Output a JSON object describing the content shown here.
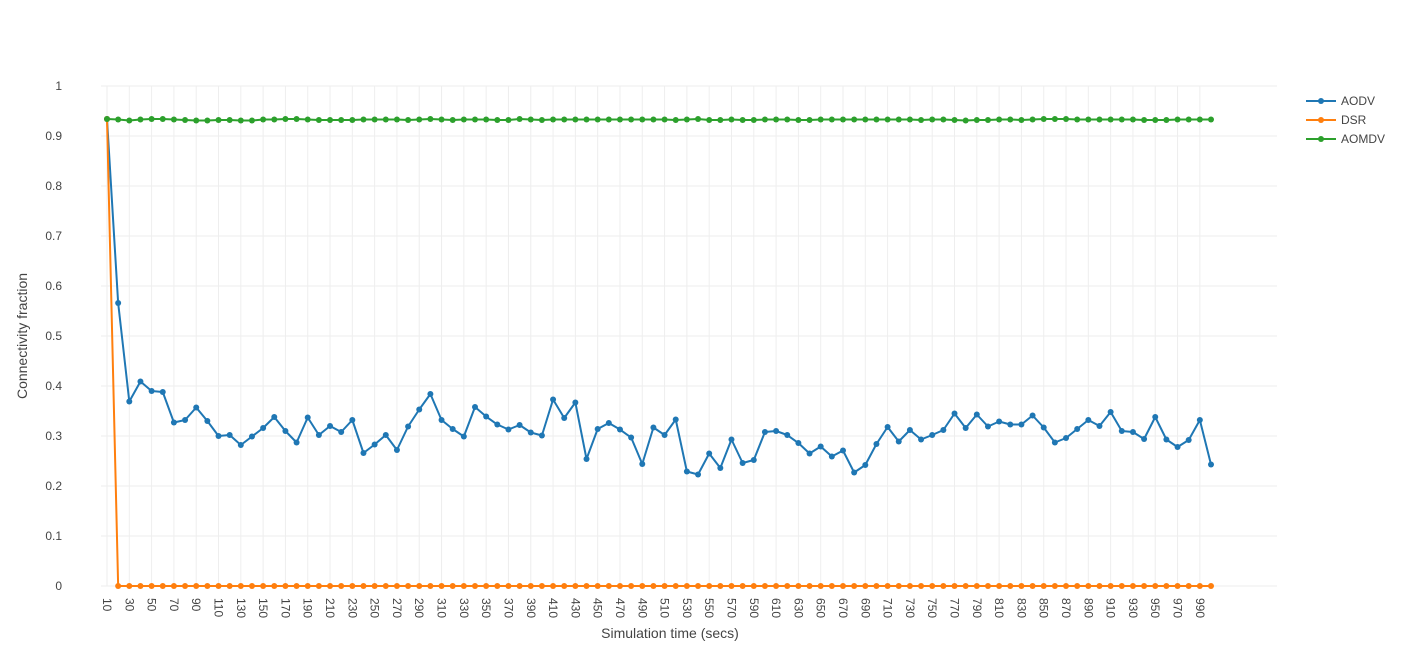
{
  "chart_data": {
    "type": "line",
    "xlabel": "Simulation time (secs)",
    "ylabel": "Connectivity fraction",
    "xlim": [
      10,
      1000
    ],
    "ylim": [
      0,
      1
    ],
    "x_tick_step": 20,
    "y_ticks": [
      0,
      0.1,
      0.2,
      0.3,
      0.4,
      0.5,
      0.6,
      0.7,
      0.8,
      0.9,
      1
    ],
    "y_tick_labels": [
      "0",
      "0.1",
      "0.2",
      "0.3",
      "0.4",
      "0.5",
      "0.6",
      "0.7",
      "0.8",
      "0.9",
      "1"
    ],
    "grid": true,
    "legend_position": "top-right",
    "x": [
      10,
      20,
      30,
      40,
      50,
      60,
      70,
      80,
      90,
      100,
      110,
      120,
      130,
      140,
      150,
      160,
      170,
      180,
      190,
      200,
      210,
      220,
      230,
      240,
      250,
      260,
      270,
      280,
      290,
      300,
      310,
      320,
      330,
      340,
      350,
      360,
      370,
      380,
      390,
      400,
      410,
      420,
      430,
      440,
      450,
      460,
      470,
      480,
      490,
      500,
      510,
      520,
      530,
      540,
      550,
      560,
      570,
      580,
      590,
      600,
      610,
      620,
      630,
      640,
      650,
      660,
      670,
      680,
      690,
      700,
      710,
      720,
      730,
      740,
      750,
      760,
      770,
      780,
      790,
      800,
      810,
      820,
      830,
      840,
      850,
      860,
      870,
      880,
      890,
      900,
      910,
      920,
      930,
      940,
      950,
      960,
      970,
      980,
      990,
      1000
    ],
    "series": [
      {
        "name": "AODV",
        "color": "#1f77b4",
        "values": [
          0.934,
          0.566,
          0.369,
          0.409,
          0.39,
          0.388,
          0.327,
          0.332,
          0.357,
          0.33,
          0.3,
          0.302,
          0.282,
          0.299,
          0.316,
          0.338,
          0.31,
          0.287,
          0.337,
          0.302,
          0.32,
          0.308,
          0.332,
          0.266,
          0.283,
          0.302,
          0.272,
          0.319,
          0.353,
          0.384,
          0.332,
          0.314,
          0.299,
          0.358,
          0.339,
          0.323,
          0.313,
          0.322,
          0.307,
          0.301,
          0.373,
          0.336,
          0.367,
          0.254,
          0.314,
          0.326,
          0.313,
          0.297,
          0.244,
          0.317,
          0.302,
          0.333,
          0.229,
          0.223,
          0.265,
          0.236,
          0.293,
          0.246,
          0.252,
          0.308,
          0.31,
          0.302,
          0.286,
          0.265,
          0.279,
          0.259,
          0.271,
          0.227,
          0.242,
          0.284,
          0.318,
          0.289,
          0.312,
          0.293,
          0.302,
          0.312,
          0.345,
          0.316,
          0.343,
          0.319,
          0.329,
          0.323,
          0.323,
          0.341,
          0.317,
          0.287,
          0.296,
          0.314,
          0.332,
          0.32,
          0.348,
          0.31,
          0.308,
          0.294,
          0.338,
          0.293,
          0.278,
          0.292,
          0.332,
          0.243
        ]
      },
      {
        "name": "DSR",
        "color": "#ff7f0e",
        "values": [
          0.934,
          0,
          0,
          0,
          0,
          0,
          0,
          0,
          0,
          0,
          0,
          0,
          0,
          0,
          0,
          0,
          0,
          0,
          0,
          0,
          0,
          0,
          0,
          0,
          0,
          0,
          0,
          0,
          0,
          0,
          0,
          0,
          0,
          0,
          0,
          0,
          0,
          0,
          0,
          0,
          0,
          0,
          0,
          0,
          0,
          0,
          0,
          0,
          0,
          0,
          0,
          0,
          0,
          0,
          0,
          0,
          0,
          0,
          0,
          0,
          0,
          0,
          0,
          0,
          0,
          0,
          0,
          0,
          0,
          0,
          0,
          0,
          0,
          0,
          0,
          0,
          0,
          0,
          0,
          0,
          0,
          0,
          0,
          0,
          0,
          0,
          0,
          0,
          0,
          0,
          0,
          0,
          0,
          0,
          0,
          0,
          0,
          0,
          0,
          0
        ]
      },
      {
        "name": "AOMDV",
        "color": "#2ca02c",
        "values": [
          0.934,
          0.933,
          0.931,
          0.933,
          0.934,
          0.934,
          0.933,
          0.932,
          0.931,
          0.931,
          0.932,
          0.932,
          0.931,
          0.931,
          0.933,
          0.933,
          0.934,
          0.934,
          0.933,
          0.932,
          0.932,
          0.932,
          0.932,
          0.933,
          0.933,
          0.933,
          0.933,
          0.932,
          0.933,
          0.934,
          0.933,
          0.932,
          0.933,
          0.933,
          0.933,
          0.932,
          0.932,
          0.934,
          0.933,
          0.932,
          0.933,
          0.933,
          0.933,
          0.933,
          0.933,
          0.933,
          0.933,
          0.933,
          0.933,
          0.933,
          0.933,
          0.932,
          0.933,
          0.934,
          0.932,
          0.932,
          0.933,
          0.932,
          0.932,
          0.933,
          0.933,
          0.933,
          0.932,
          0.932,
          0.933,
          0.933,
          0.933,
          0.933,
          0.933,
          0.933,
          0.933,
          0.933,
          0.933,
          0.932,
          0.933,
          0.933,
          0.932,
          0.931,
          0.932,
          0.932,
          0.933,
          0.933,
          0.932,
          0.933,
          0.934,
          0.934,
          0.934,
          0.933,
          0.933,
          0.933,
          0.933,
          0.933,
          0.933,
          0.932,
          0.932,
          0.932,
          0.933,
          0.933,
          0.933,
          0.933
        ]
      }
    ]
  }
}
